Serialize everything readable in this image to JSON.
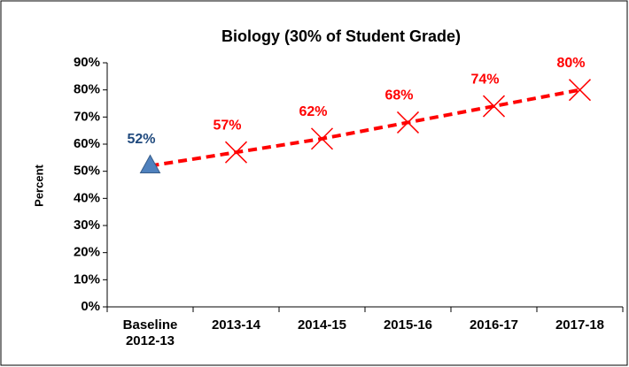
{
  "chart_data": {
    "type": "line",
    "title": "Biology (30% of Student Grade)",
    "y_label": "Percent",
    "categories": [
      "Baseline 2012-13",
      "2013-14",
      "2014-15",
      "2015-16",
      "2016-17",
      "2017-18"
    ],
    "values": [
      52,
      57,
      62,
      68,
      74,
      80
    ],
    "value_labels": [
      "52%",
      "57%",
      "62%",
      "68%",
      "74%",
      "80%"
    ],
    "color": "#ff0000",
    "markers": [
      "triangle",
      "x",
      "x",
      "x",
      "x",
      "x"
    ],
    "point_colors": [
      "#4f81bd",
      "#ff0000",
      "#ff0000",
      "#ff0000",
      "#ff0000",
      "#ff0000"
    ],
    "label_colors": [
      "#1f497d",
      "#ff0000",
      "#ff0000",
      "#ff0000",
      "#ff0000",
      "#ff0000"
    ],
    "ylim": [
      0,
      90
    ],
    "yticks": [
      {
        "value": 0,
        "label": "0%"
      },
      {
        "value": 10,
        "label": "10%"
      },
      {
        "value": 20,
        "label": "20%"
      },
      {
        "value": 30,
        "label": "30%"
      },
      {
        "value": 40,
        "label": "40%"
      },
      {
        "value": 50,
        "label": "50%"
      },
      {
        "value": 60,
        "label": "60%"
      },
      {
        "value": 70,
        "label": "70%"
      },
      {
        "value": 80,
        "label": "80%"
      },
      {
        "value": 90,
        "label": "90%"
      }
    ],
    "grid": false
  }
}
